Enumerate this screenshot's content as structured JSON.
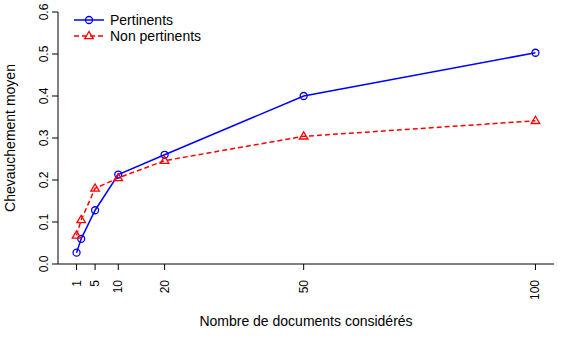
{
  "chart_data": {
    "type": "line",
    "x_label": "Nombre de documents considérés",
    "y_label": "Chevauchement moyen",
    "x": [
      1,
      2,
      5,
      10,
      20,
      50,
      100
    ],
    "series": [
      {
        "name": "Pertinents",
        "color": "#0000ff",
        "marker": "circle",
        "line_style": "solid",
        "values": [
          0.027,
          0.06,
          0.128,
          0.213,
          0.26,
          0.4,
          0.503
        ]
      },
      {
        "name": "Non pertinents",
        "color": "#ff0000",
        "marker": "triangle",
        "line_style": "dashed",
        "values": [
          0.068,
          0.105,
          0.18,
          0.205,
          0.246,
          0.304,
          0.341
        ]
      }
    ],
    "xlim": [
      -3,
      104
    ],
    "xticks": [
      1,
      5,
      10,
      20,
      50,
      100
    ],
    "ylim": [
      0,
      0.6
    ],
    "yticks": [
      {
        "value": 0,
        "label": "0.0"
      },
      0.1,
      0.2,
      0.3,
      0.4,
      0.5,
      0.6
    ],
    "legend": "upper left"
  }
}
